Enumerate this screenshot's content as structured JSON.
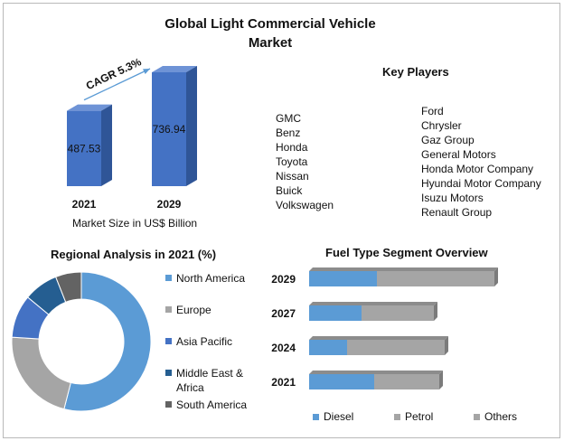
{
  "title": "Global Light Commercial Vehicle\nMarket",
  "key_players": {
    "heading": "Key Players",
    "column1": [
      "GMC",
      "Benz",
      "Honda",
      "Toyota",
      "Nissan",
      "Buick",
      "Volkswagen"
    ],
    "column2": [
      "Ford",
      "Chrysler",
      "Gaz Group",
      "General Motors",
      "Honda Motor Company",
      "Hyundai Motor Company",
      "Isuzu Motors",
      "Renault Group"
    ]
  },
  "colors": {
    "bar_front": "#4472c4",
    "bar_side": "#2f5597",
    "arrow": "#5b9bd5",
    "diesel": "#5b9bd5",
    "petrol": "#a5a5a5",
    "north_america": "#5b9bd5",
    "europe": "#a5a5a5",
    "asia_pacific": "#4472c4",
    "middle_east_africa": "#255e91",
    "south_america": "#636363"
  },
  "chart_data": [
    {
      "type": "bar",
      "categories": [
        "2021",
        "2029"
      ],
      "values": [
        487.53,
        736.94
      ],
      "data_labels": [
        "487.53",
        "736.94"
      ],
      "annotation": "CAGR 5.3%",
      "xlabel": "Market Size in US$ Billion",
      "ylim": [
        0,
        800
      ]
    },
    {
      "type": "pie",
      "title": "Regional Analysis in 2021 (%)",
      "labels": [
        "North America",
        "Europe",
        "Asia Pacific",
        "Middle East & Africa",
        "South America"
      ],
      "values": [
        54,
        22,
        10,
        8,
        6
      ],
      "legend_labels": [
        "North America",
        "Europe",
        "Asia Pacific",
        "Middle East &\nAfrica",
        "South America"
      ],
      "colors": [
        "#5b9bd5",
        "#a5a5a5",
        "#4472c4",
        "#255e91",
        "#636363"
      ],
      "legend": "right"
    },
    {
      "type": "bar",
      "orientation": "horizontal",
      "stacked": true,
      "title": "Fuel Type Segment Overview",
      "categories": [
        "2029",
        "2027",
        "2024",
        "2021"
      ],
      "series": [
        {
          "name": "Diesel",
          "values": [
            75,
            58,
            42,
            72
          ]
        },
        {
          "name": "Petrol",
          "values": [
            130,
            80,
            108,
            72
          ]
        },
        {
          "name": "Others",
          "values": [
            0,
            0,
            0,
            0
          ]
        }
      ],
      "colors": [
        "#5b9bd5",
        "#a5a5a5",
        "#a5a5a5"
      ],
      "legend": "bottom"
    }
  ]
}
